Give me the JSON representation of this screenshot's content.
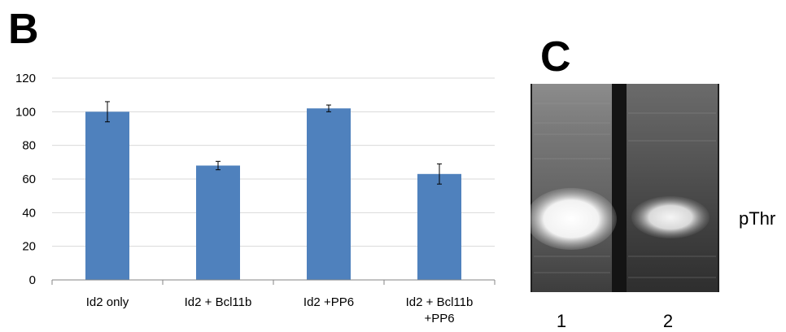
{
  "panels": {
    "b_label": "B",
    "c_label": "C"
  },
  "chart_data": {
    "type": "bar",
    "categories": [
      "Id2 only",
      "Id2 + Bcl11b",
      "Id2 +PP6",
      "Id2 + Bcl11b\n+PP6"
    ],
    "series": [
      {
        "values": [
          100,
          68,
          102,
          63
        ],
        "errors": [
          6,
          2.5,
          2,
          6
        ],
        "color": "#4f81bd"
      }
    ],
    "ylim": [
      0,
      120
    ],
    "yticks": [
      0,
      20,
      40,
      60,
      80,
      100,
      120
    ],
    "grid": true,
    "title": "",
    "xlabel": "",
    "ylabel": ""
  },
  "blot": {
    "lane_labels": [
      "1",
      "2"
    ],
    "band_label": "pThr"
  }
}
